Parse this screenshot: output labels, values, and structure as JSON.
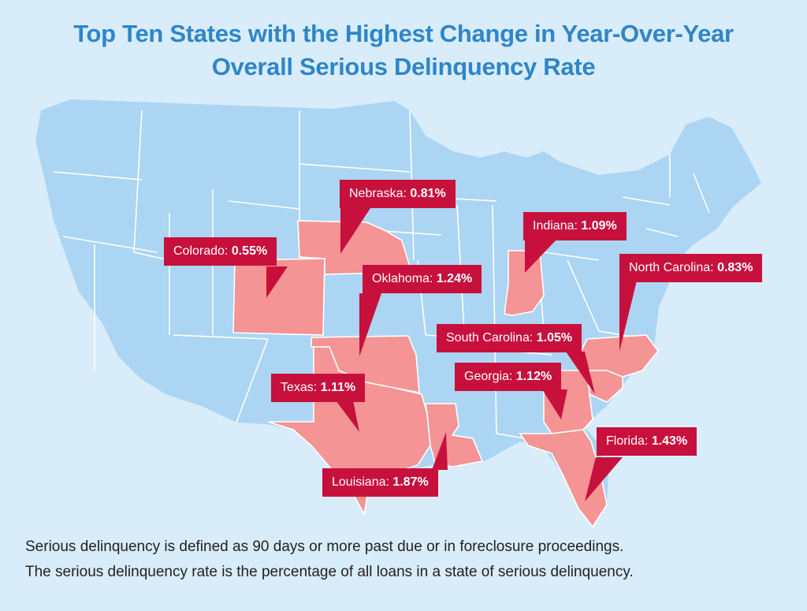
{
  "title": {
    "line1": "Top Ten States with the Highest Change in Year-Over-Year",
    "line2": "Overall Serious Delinquency Rate"
  },
  "colors": {
    "background": "#d9ecfa",
    "state_fill": "#abd5f3",
    "highlight_fill": "#f49494",
    "border": "#ffffff",
    "callout": "#c8103d",
    "title": "#2e86c8"
  },
  "callouts": {
    "nebraska": {
      "name": "Nebraska:",
      "value": "0.81%"
    },
    "colorado": {
      "name": "Colorado:",
      "value": "0.55%"
    },
    "oklahoma": {
      "name": "Oklahoma:",
      "value": "1.24%"
    },
    "indiana": {
      "name": "Indiana:",
      "value": "1.09%"
    },
    "north_carolina": {
      "name": "North Carolina:",
      "value": "0.83%"
    },
    "south_carolina": {
      "name": "South Carolina:",
      "value": "1.05%"
    },
    "georgia": {
      "name": "Georgia:",
      "value": "1.12%"
    },
    "texas": {
      "name": "Texas:",
      "value": "1.11%"
    },
    "florida": {
      "name": "Florida:",
      "value": "1.43%"
    },
    "louisiana": {
      "name": "Louisiana:",
      "value": "1.87%"
    }
  },
  "footnote": {
    "line1": "Serious delinquency is defined as 90 days or more past due or in foreclosure proceedings.",
    "line2": "The serious delinquency rate is the percentage of all loans in a state of serious delinquency."
  }
}
